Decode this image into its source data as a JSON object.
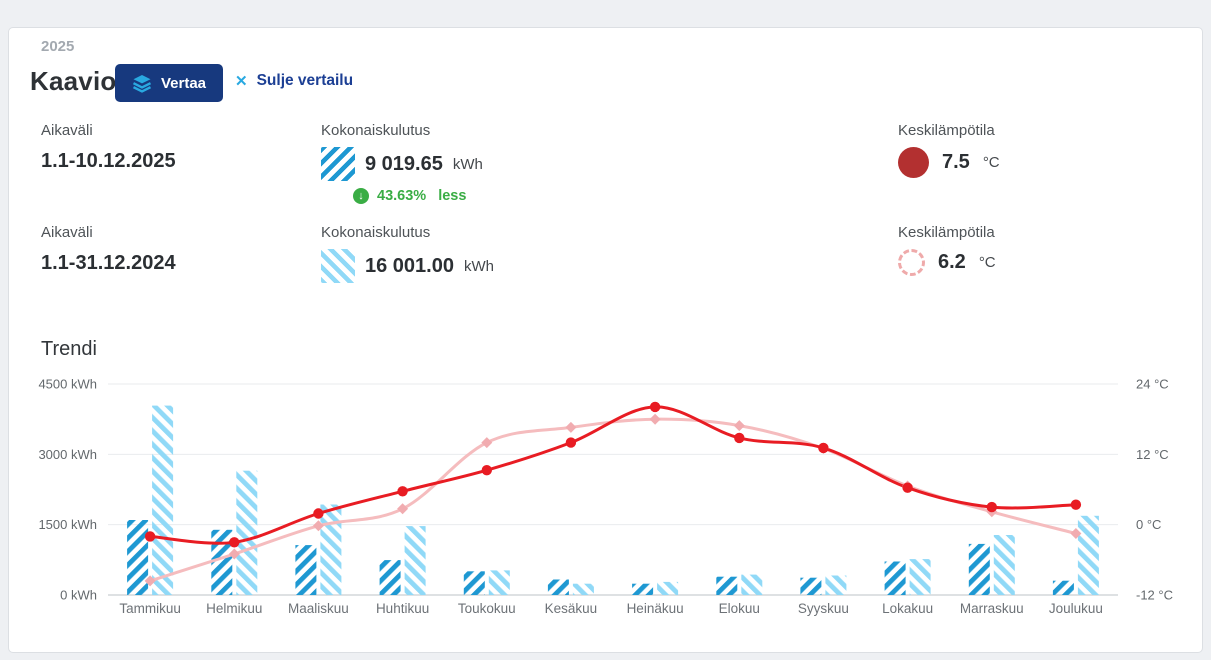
{
  "theme": {
    "navy": "#17397e",
    "cyan": "#29a9e1",
    "link_navy": "#1c3f94",
    "blue": "#1e98d2",
    "light_blue": "#90d9f7",
    "green": "#3aad45",
    "dark_red": "#b33030",
    "pink_dash": "#efaaaa",
    "chart_red": "#e81c23",
    "chart_pink": "#f5bcbe"
  },
  "header": {
    "year_label": "2025",
    "title": "Kaavio",
    "compare_button": "Vertaa",
    "close_compare": "Sulje vertailu",
    "close_icon": "✕"
  },
  "stats": {
    "current": {
      "period_label": "Aikaväli",
      "period": "1.1-10.12.2025",
      "consumption_label": "Kokonaiskulutus",
      "consumption_value": "9 019.65",
      "consumption_unit": "kWh",
      "change_icon": "↓",
      "change_percent": "43.63%",
      "change_word": "less",
      "temp_label": "Keskilämpötila",
      "temp_value": "7.5",
      "temp_unit": "°C"
    },
    "previous": {
      "period_label": "Aikaväli",
      "period": "1.1-31.12.2024",
      "consumption_label": "Kokonaiskulutus",
      "consumption_value": "16 001.00",
      "consumption_unit": "kWh",
      "temp_label": "Keskilämpötila",
      "temp_value": "6.2",
      "temp_unit": "°C"
    }
  },
  "trend": {
    "title": "Trendi"
  },
  "chart_data": {
    "type": "bar+line",
    "title": "Trendi",
    "categories": [
      "Tammikuu",
      "Helmikuu",
      "Maaliskuu",
      "Huhtikuu",
      "Toukokuu",
      "Kesäkuu",
      "Heinäkuu",
      "Elokuu",
      "Syyskuu",
      "Lokakuu",
      "Marraskuu",
      "Joulukuu"
    ],
    "series": [
      {
        "name": "consumption-2025",
        "type": "bar",
        "unit": "kWh",
        "color": "#1e98d2",
        "hatch": "forward",
        "values": [
          1600,
          1390,
          1065,
          745,
          505,
          330,
          240,
          390,
          370,
          715,
          1090,
          305
        ]
      },
      {
        "name": "consumption-2024",
        "type": "bar",
        "unit": "kWh",
        "color": "#90d9f7",
        "hatch": "backward",
        "values": [
          4040,
          2650,
          1930,
          1470,
          525,
          240,
          280,
          435,
          415,
          765,
          1280,
          1690
        ]
      },
      {
        "name": "temperature-2025",
        "type": "line",
        "unit": "°C",
        "color": "#e81c23",
        "marker": "circle",
        "values": [
          -2.0,
          -3.0,
          1.9,
          5.7,
          9.3,
          14.0,
          20.1,
          14.8,
          13.1,
          6.3,
          3.0,
          3.4
        ]
      },
      {
        "name": "temperature-2024",
        "type": "line",
        "unit": "°C",
        "color": "#f5bcbe",
        "marker": "diamond",
        "marker_color": "#f1acb0",
        "values": [
          -9.6,
          -5.0,
          -0.2,
          2.7,
          14.0,
          16.6,
          18.0,
          16.9,
          13.0,
          6.6,
          2.2,
          -1.5
        ]
      }
    ],
    "left_axis": {
      "min": 0,
      "max": 4500,
      "tick_values": [
        4500,
        3000,
        1500,
        0
      ],
      "tick_labels": [
        "4500 kWh",
        "3000 kWh",
        "1500 kWh",
        "0 kWh"
      ]
    },
    "right_axis": {
      "min": -12,
      "max": 24,
      "tick_values": [
        24,
        12,
        0,
        -12
      ],
      "tick_labels": [
        "24 °C",
        "12 °C",
        "0 °C",
        "-12 °C"
      ]
    },
    "grid": "horizontal-only",
    "legend": "none"
  }
}
